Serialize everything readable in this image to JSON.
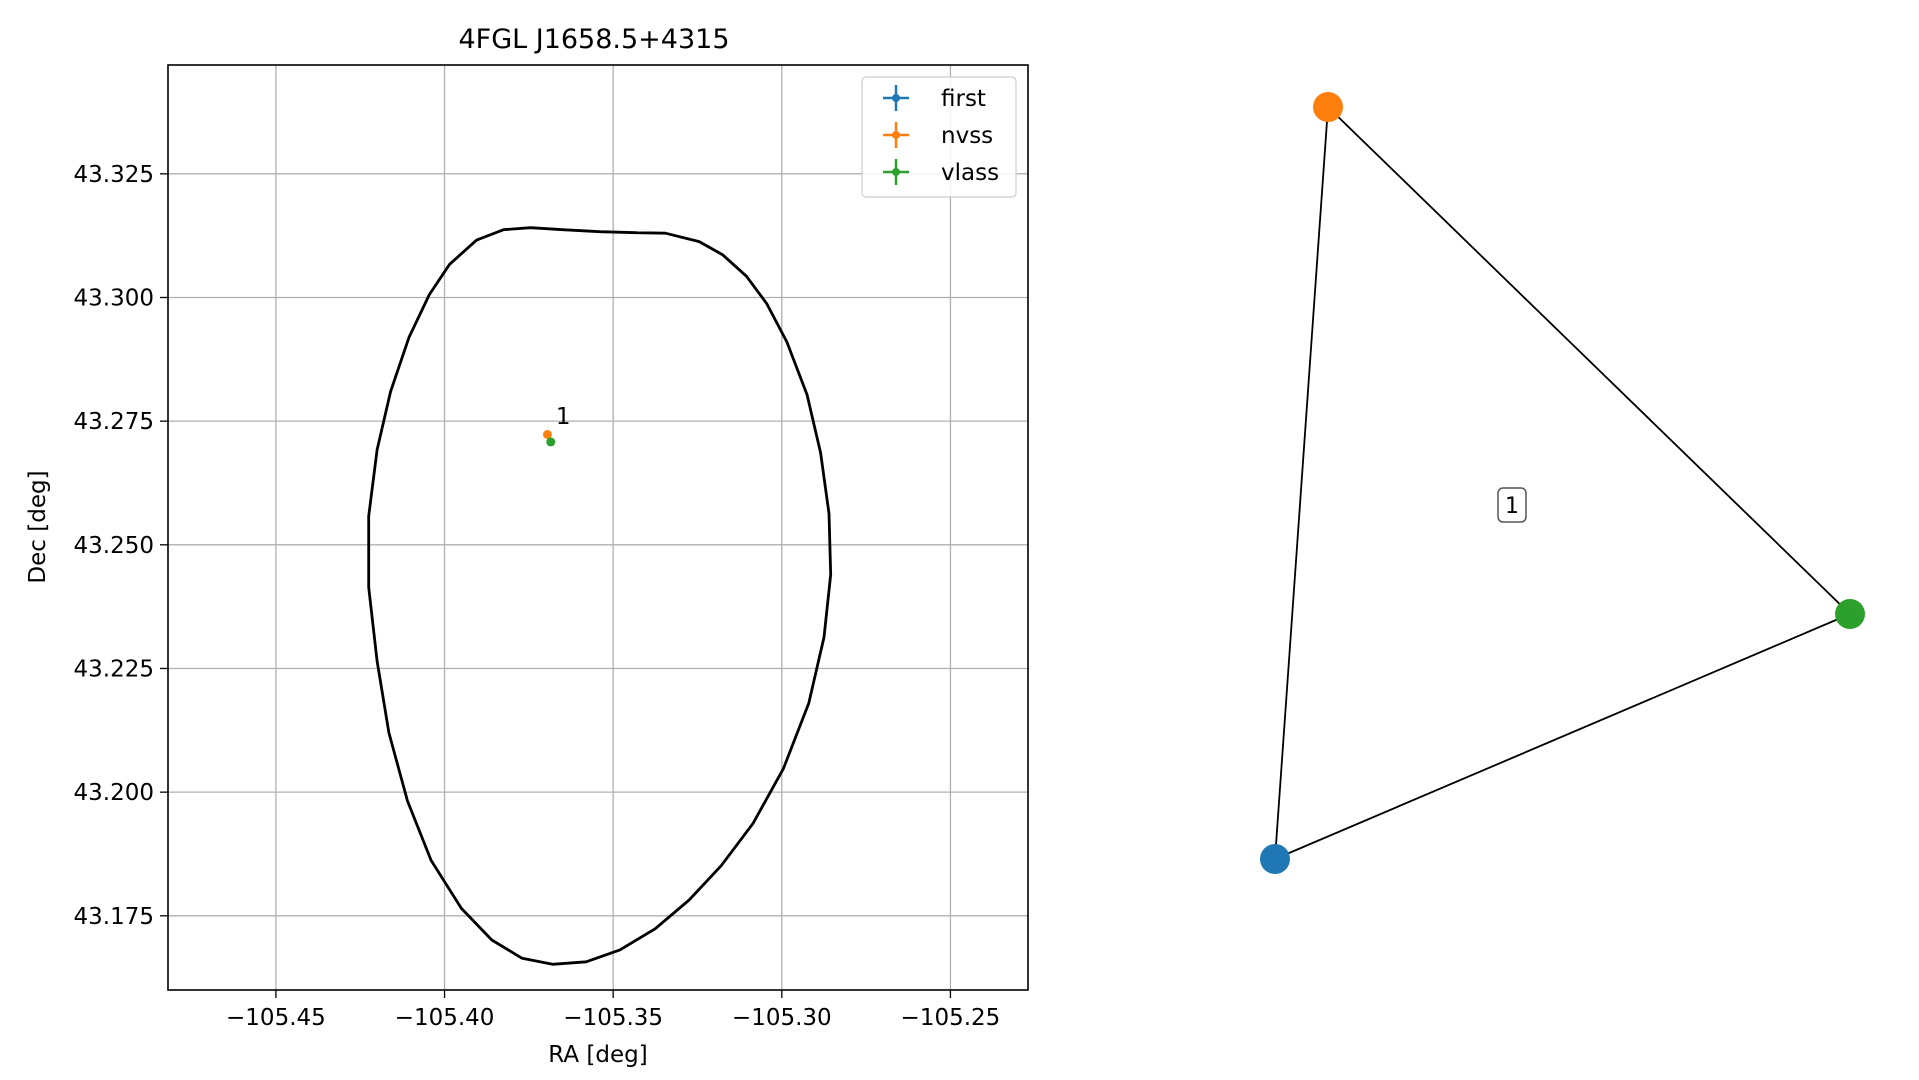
{
  "chart_data": [
    {
      "type": "scatter",
      "title": "4FGL J1658.5+4315",
      "xlabel": "RA [deg]",
      "ylabel": "Dec [deg]",
      "xlim": [
        -105.482,
        -105.227
      ],
      "ylim": [
        43.16,
        43.347
      ],
      "xticks": [
        -105.45,
        -105.4,
        -105.35,
        -105.3,
        -105.25
      ],
      "xtick_labels": [
        "−105.45",
        "−105.40",
        "−105.35",
        "−105.30",
        "−105.25"
      ],
      "yticks": [
        43.175,
        43.2,
        43.225,
        43.25,
        43.275,
        43.3,
        43.325
      ],
      "ytick_labels": [
        "43.175",
        "43.200",
        "43.225",
        "43.250",
        "43.275",
        "43.300",
        "43.325"
      ],
      "grid": true,
      "legend_position": "top-right",
      "series": [
        {
          "name": "first",
          "color": "#1f77b4",
          "points": []
        },
        {
          "name": "nvss",
          "color": "#ff7f0e",
          "points": [
            {
              "x": -105.3695,
              "y": 43.2723
            }
          ]
        },
        {
          "name": "vlass",
          "color": "#2ca02c",
          "points": [
            {
              "x": -105.3685,
              "y": 43.2708
            }
          ]
        }
      ],
      "ellipse": {
        "color": "#000000",
        "points": [
          [
            -105.343,
            43.3131
          ],
          [
            -105.3345,
            43.313
          ],
          [
            -105.3245,
            43.3113
          ],
          [
            -105.3175,
            43.3086
          ],
          [
            -105.3105,
            43.3043
          ],
          [
            -105.3045,
            43.2988
          ],
          [
            -105.2985,
            43.291
          ],
          [
            -105.2925,
            43.2803
          ],
          [
            -105.2885,
            43.2686
          ],
          [
            -105.286,
            43.2563
          ],
          [
            -105.2855,
            43.244
          ],
          [
            -105.2875,
            43.2313
          ],
          [
            -105.292,
            43.218
          ],
          [
            -105.2995,
            43.2048
          ],
          [
            -105.3085,
            43.1937
          ],
          [
            -105.318,
            43.1851
          ],
          [
            -105.3275,
            43.1782
          ],
          [
            -105.3375,
            43.1724
          ],
          [
            -105.348,
            43.1681
          ],
          [
            -105.358,
            43.1657
          ],
          [
            -105.368,
            43.1652
          ],
          [
            -105.377,
            43.1664
          ],
          [
            -105.386,
            43.1701
          ],
          [
            -105.395,
            43.1765
          ],
          [
            -105.404,
            43.1862
          ],
          [
            -105.411,
            43.1982
          ],
          [
            -105.4165,
            43.212
          ],
          [
            -105.42,
            43.2265
          ],
          [
            -105.4225,
            43.2414
          ],
          [
            -105.4225,
            43.2558
          ],
          [
            -105.42,
            43.2692
          ],
          [
            -105.416,
            43.281
          ],
          [
            -105.4105,
            43.292
          ],
          [
            -105.4045,
            43.3006
          ],
          [
            -105.3985,
            43.3067
          ],
          [
            -105.3905,
            43.3116
          ],
          [
            -105.3825,
            43.3137
          ],
          [
            -105.3745,
            43.3141
          ],
          [
            -105.365,
            43.3137
          ],
          [
            -105.354,
            43.3133
          ],
          [
            -105.343,
            43.3131
          ]
        ]
      },
      "annotations": [
        {
          "text": "1",
          "x": -105.367,
          "y": 43.2744
        }
      ]
    },
    {
      "type": "graph",
      "nodes": [
        {
          "name": "first",
          "color": "#1f77b4"
        },
        {
          "name": "nvss",
          "color": "#ff7f0e"
        },
        {
          "name": "vlass",
          "color": "#2ca02c"
        }
      ],
      "edges": [
        [
          "first",
          "nvss"
        ],
        [
          "nvss",
          "vlass"
        ],
        [
          "vlass",
          "first"
        ]
      ],
      "face_label": "1"
    }
  ]
}
